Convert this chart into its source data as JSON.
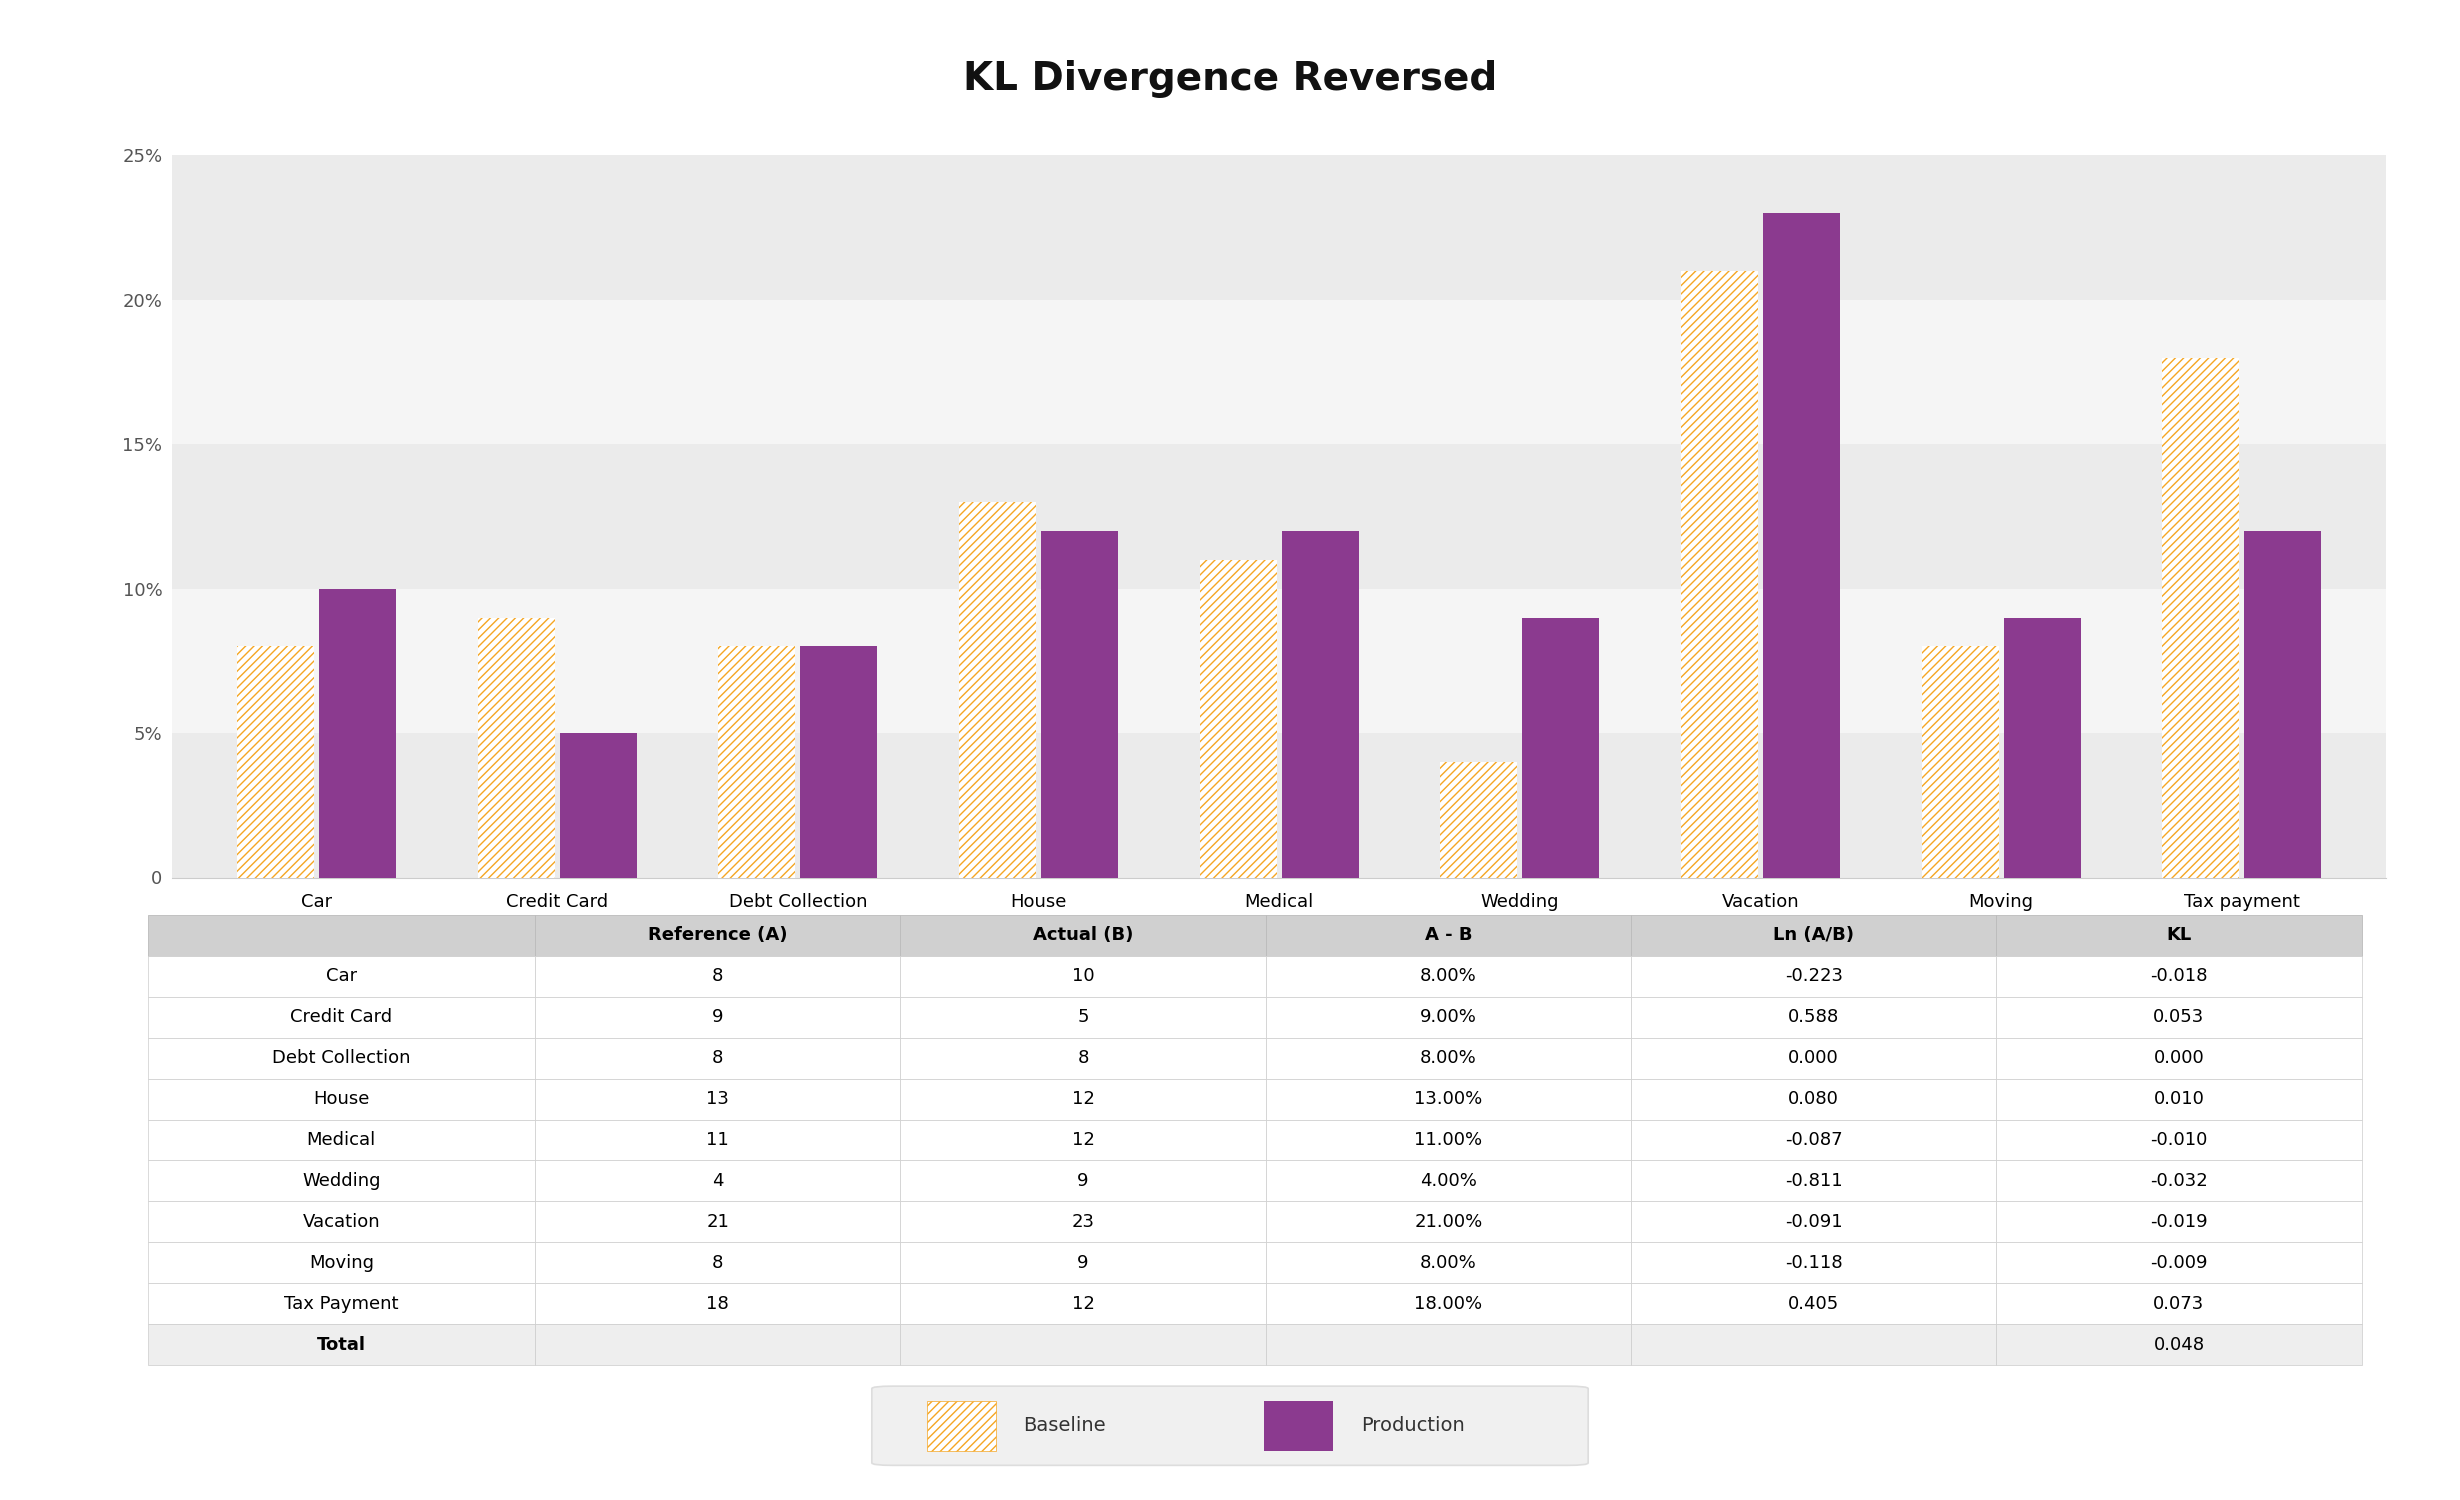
{
  "title": "KL Divergence Reversed",
  "categories": [
    "Car",
    "Credit Card",
    "Debt Collection",
    "House",
    "Medical",
    "Wedding",
    "Vacation",
    "Moving",
    "Tax payment"
  ],
  "reference_pct": [
    0.08,
    0.09,
    0.08,
    0.13,
    0.11,
    0.04,
    0.21,
    0.08,
    0.18
  ],
  "actual_pct": [
    0.1,
    0.05,
    0.08,
    0.12,
    0.12,
    0.09,
    0.23,
    0.09,
    0.12
  ],
  "bar_color_baseline": "#F5A623",
  "bar_color_production": "#8B3A8F",
  "background_color": "#FFFFFF",
  "band_colors": [
    "#EBEBEB",
    "#F5F5F5"
  ],
  "ylim": [
    0,
    0.27
  ],
  "yticks": [
    0,
    0.05,
    0.1,
    0.15,
    0.2,
    0.25
  ],
  "ytick_labels": [
    "0",
    "5%",
    "10%",
    "15%",
    "20%",
    "25%"
  ],
  "table_headers": [
    "",
    "Reference (A)",
    "Actual (B)",
    "A - B",
    "Ln (A/B)",
    "KL"
  ],
  "table_rows": [
    [
      "Car",
      "8",
      "10",
      "8.00%",
      "-0.223",
      "-0.018"
    ],
    [
      "Credit Card",
      "9",
      "5",
      "9.00%",
      "0.588",
      "0.053"
    ],
    [
      "Debt Collection",
      "8",
      "8",
      "8.00%",
      "0.000",
      "0.000"
    ],
    [
      "House",
      "13",
      "12",
      "13.00%",
      "0.080",
      "0.010"
    ],
    [
      "Medical",
      "11",
      "12",
      "11.00%",
      "-0.087",
      "-0.010"
    ],
    [
      "Wedding",
      "4",
      "9",
      "4.00%",
      "-0.811",
      "-0.032"
    ],
    [
      "Vacation",
      "21",
      "23",
      "21.00%",
      "-0.091",
      "-0.019"
    ],
    [
      "Moving",
      "8",
      "9",
      "8.00%",
      "-0.118",
      "-0.009"
    ],
    [
      "Tax Payment",
      "18",
      "12",
      "18.00%",
      "0.405",
      "0.073"
    ]
  ],
  "table_total_row": [
    "Total",
    "",
    "",
    "",
    "",
    "0.048"
  ],
  "legend_labels": [
    "Baseline",
    "Production"
  ],
  "title_fontsize": 28,
  "axis_fontsize": 13,
  "table_fontsize": 13,
  "legend_fontsize": 14
}
